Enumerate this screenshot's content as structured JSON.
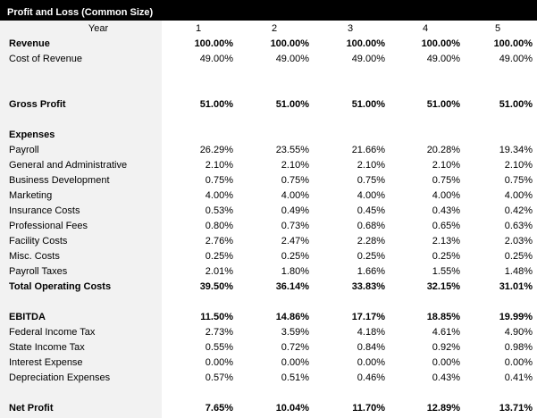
{
  "title": "Profit and Loss (Common Size)",
  "header": {
    "label": "Year",
    "columns": [
      "1",
      "2",
      "3",
      "4",
      "5"
    ]
  },
  "rows": [
    {
      "label": "Revenue",
      "values": [
        "100.00%",
        "100.00%",
        "100.00%",
        "100.00%",
        "100.00%"
      ]
    },
    {
      "label": "Cost of Revenue",
      "values": [
        "49.00%",
        "49.00%",
        "49.00%",
        "49.00%",
        "49.00%"
      ]
    },
    {
      "label": "Gross Profit",
      "values": [
        "51.00%",
        "51.00%",
        "51.00%",
        "51.00%",
        "51.00%"
      ]
    },
    {
      "label": "Expenses"
    },
    {
      "label": "Payroll",
      "values": [
        "26.29%",
        "23.55%",
        "21.66%",
        "20.28%",
        "19.34%"
      ]
    },
    {
      "label": "General and Administrative",
      "values": [
        "2.10%",
        "2.10%",
        "2.10%",
        "2.10%",
        "2.10%"
      ]
    },
    {
      "label": "Business Development",
      "values": [
        "0.75%",
        "0.75%",
        "0.75%",
        "0.75%",
        "0.75%"
      ]
    },
    {
      "label": "Marketing",
      "values": [
        "4.00%",
        "4.00%",
        "4.00%",
        "4.00%",
        "4.00%"
      ]
    },
    {
      "label": "Insurance Costs",
      "values": [
        "0.53%",
        "0.49%",
        "0.45%",
        "0.43%",
        "0.42%"
      ]
    },
    {
      "label": "Professional Fees",
      "values": [
        "0.80%",
        "0.73%",
        "0.68%",
        "0.65%",
        "0.63%"
      ]
    },
    {
      "label": "Facility Costs",
      "values": [
        "2.76%",
        "2.47%",
        "2.28%",
        "2.13%",
        "2.03%"
      ]
    },
    {
      "label": "Misc. Costs",
      "values": [
        "0.25%",
        "0.25%",
        "0.25%",
        "0.25%",
        "0.25%"
      ]
    },
    {
      "label": "Payroll Taxes",
      "values": [
        "2.01%",
        "1.80%",
        "1.66%",
        "1.55%",
        "1.48%"
      ]
    },
    {
      "label": "Total Operating Costs",
      "values": [
        "39.50%",
        "36.14%",
        "33.83%",
        "32.15%",
        "31.01%"
      ]
    },
    {
      "label": "EBITDA",
      "values": [
        "11.50%",
        "14.86%",
        "17.17%",
        "18.85%",
        "19.99%"
      ]
    },
    {
      "label": "Federal Income Tax",
      "values": [
        "2.73%",
        "3.59%",
        "4.18%",
        "4.61%",
        "4.90%"
      ]
    },
    {
      "label": "State Income Tax",
      "values": [
        "0.55%",
        "0.72%",
        "0.84%",
        "0.92%",
        "0.98%"
      ]
    },
    {
      "label": "Interest Expense",
      "values": [
        "0.00%",
        "0.00%",
        "0.00%",
        "0.00%",
        "0.00%"
      ]
    },
    {
      "label": "Depreciation Expenses",
      "values": [
        "0.57%",
        "0.51%",
        "0.46%",
        "0.43%",
        "0.41%"
      ]
    },
    {
      "label": "Net Profit",
      "values": [
        "7.65%",
        "10.04%",
        "11.70%",
        "12.89%",
        "13.71%"
      ]
    }
  ]
}
